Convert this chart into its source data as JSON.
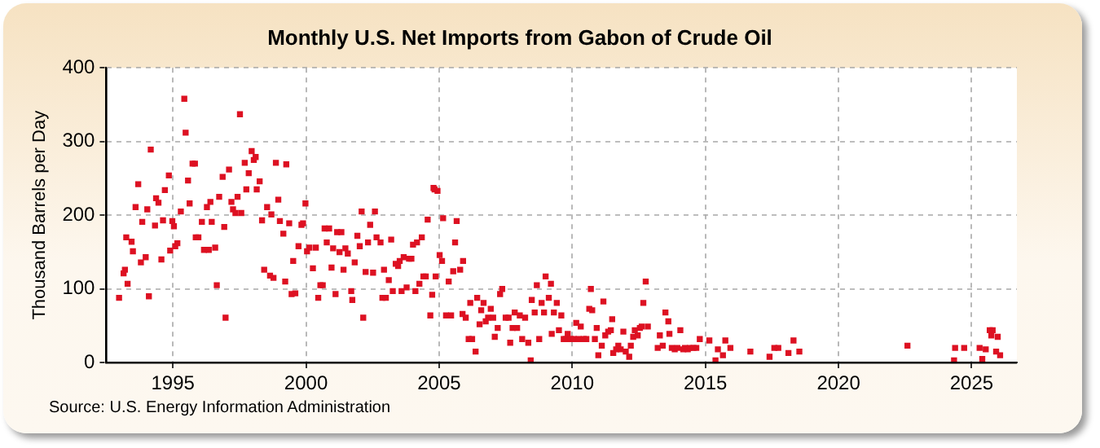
{
  "chart_data": {
    "type": "scatter",
    "title": "Monthly U.S. Net Imports from Gabon of Crude Oil",
    "ylabel": "Thousand Barrels per Day",
    "annotations": [
      "Source: U.S. Energy Information Administration"
    ],
    "color": "#dd1122",
    "marker": "square",
    "grid": true,
    "xlim": [
      1992.5,
      2026.7
    ],
    "xticks": [
      1995,
      2000,
      2005,
      2010,
      2015,
      2020,
      2025
    ],
    "ylim": [
      0,
      400
    ],
    "yticks": [
      0,
      100,
      200,
      300,
      400
    ],
    "x": [
      1992.98,
      1993.15,
      1993.2,
      1993.3,
      1993.25,
      1993.45,
      1993.5,
      1993.6,
      1993.7,
      1993.85,
      1993.8,
      1993.98,
      1994.04,
      1994.1,
      1994.17,
      1994.33,
      1994.37,
      1994.46,
      1994.57,
      1994.63,
      1994.7,
      1994.85,
      1994.9,
      1994.98,
      1995.04,
      1995.09,
      1995.17,
      1995.3,
      1995.43,
      1995.48,
      1995.57,
      1995.63,
      1995.74,
      1995.83,
      1995.86,
      1995.96,
      1996.09,
      1996.17,
      1996.28,
      1996.35,
      1996.41,
      1996.46,
      1996.59,
      1996.65,
      1996.74,
      1996.87,
      1996.93,
      1996.98,
      1997.11,
      1997.2,
      1997.26,
      1997.35,
      1997.43,
      1997.52,
      1997.57,
      1997.7,
      1997.76,
      1997.85,
      1997.96,
      1998.04,
      1998.11,
      1998.15,
      1998.26,
      1998.35,
      1998.43,
      1998.54,
      1998.65,
      1998.7,
      1998.78,
      1998.87,
      1998.96,
      1999.02,
      1999.15,
      1999.22,
      1999.26,
      1999.37,
      1999.46,
      1999.52,
      1999.6,
      1999.72,
      1999.83,
      1999.89,
      1999.98,
      2000.04,
      2000.13,
      2000.26,
      2000.37,
      2000.46,
      2000.54,
      2000.63,
      2000.7,
      2000.78,
      2000.87,
      2000.96,
      2001.02,
      2001.11,
      2001.17,
      2001.26,
      2001.33,
      2001.41,
      2001.48,
      2001.57,
      2001.7,
      2001.74,
      2001.83,
      2001.93,
      2002.02,
      2002.09,
      2002.15,
      2002.24,
      2002.33,
      2002.41,
      2002.52,
      2002.59,
      2002.65,
      2002.8,
      2002.87,
      2002.93,
      2003.0,
      2003.11,
      2003.2,
      2003.26,
      2003.37,
      2003.46,
      2003.52,
      2003.59,
      2003.67,
      2003.78,
      2003.87,
      2003.96,
      2004.02,
      2004.11,
      2004.17,
      2004.26,
      2004.35,
      2004.41,
      2004.5,
      2004.57,
      2004.67,
      2004.74,
      2004.79,
      2004.83,
      2004.87,
      2004.94,
      2005.02,
      2005.11,
      2005.15,
      2005.26,
      2005.36,
      2005.45,
      2005.53,
      2005.6,
      2005.66,
      2005.79,
      2005.9,
      2005.88,
      2006.0,
      2006.11,
      2006.24,
      2006.17,
      2006.37,
      2006.43,
      2006.52,
      2006.58,
      2006.67,
      2006.75,
      2006.84,
      2006.94,
      2007.03,
      2007.09,
      2007.2,
      2007.29,
      2007.37,
      2007.5,
      2007.61,
      2007.67,
      2007.76,
      2007.84,
      2007.93,
      2008.03,
      2008.12,
      2008.23,
      2008.35,
      2008.44,
      2008.48,
      2008.59,
      2008.67,
      2008.76,
      2008.85,
      2008.94,
      2009.0,
      2009.12,
      2009.2,
      2009.23,
      2009.31,
      2009.42,
      2009.5,
      2009.59,
      2009.68,
      2009.76,
      2009.83,
      2009.94,
      2010.06,
      2010.15,
      2010.24,
      2010.32,
      2010.43,
      2010.53,
      2010.64,
      2010.7,
      2010.75,
      2010.85,
      2010.92,
      2010.98,
      2011.11,
      2011.17,
      2011.24,
      2011.35,
      2011.45,
      2011.5,
      2011.54,
      2011.65,
      2011.73,
      2011.82,
      2011.92,
      2012.01,
      2012.14,
      2012.2,
      2012.29,
      2012.35,
      2012.46,
      2012.54,
      2012.61,
      2012.67,
      2012.76,
      2012.84,
      2013.21,
      2013.29,
      2013.4,
      2013.5,
      2013.61,
      2013.65,
      2013.74,
      2013.85,
      2013.95,
      2014.06,
      2014.17,
      2014.23,
      2014.34,
      2014.42,
      2014.55,
      2014.66,
      2014.79,
      2015.15,
      2015.38,
      2015.47,
      2015.66,
      2015.75,
      2015.94,
      2016.69,
      2017.41,
      2017.59,
      2017.74,
      2018.12,
      2018.31,
      2018.53,
      2022.59,
      2024.34,
      2024.38,
      2024.72,
      2025.3,
      2025.4,
      2025.53,
      2025.68,
      2025.79,
      2025.74,
      2025.98,
      2025.92,
      2026.07
    ],
    "values": [
      88,
      121,
      126,
      107,
      170,
      164,
      151,
      211,
      242,
      191,
      136,
      143,
      208,
      90,
      289,
      186,
      223,
      217,
      140,
      193,
      234,
      254,
      152,
      192,
      185,
      158,
      162,
      205,
      358,
      312,
      247,
      216,
      270,
      270,
      170,
      170,
      191,
      153,
      211,
      153,
      218,
      191,
      156,
      105,
      225,
      252,
      184,
      61,
      262,
      218,
      208,
      203,
      225,
      337,
      203,
      271,
      235,
      257,
      287,
      275,
      279,
      235,
      246,
      193,
      126,
      211,
      118,
      201,
      115,
      271,
      221,
      192,
      175,
      110,
      269,
      189,
      93,
      138,
      94,
      158,
      187,
      189,
      216,
      151,
      156,
      128,
      156,
      88,
      105,
      105,
      182,
      163,
      182,
      129,
      155,
      93,
      177,
      150,
      177,
      126,
      155,
      148,
      97,
      85,
      136,
      172,
      158,
      205,
      61,
      123,
      163,
      187,
      122,
      205,
      170,
      163,
      88,
      126,
      88,
      112,
      167,
      97,
      134,
      131,
      138,
      97,
      143,
      102,
      141,
      141,
      160,
      97,
      163,
      107,
      170,
      117,
      117,
      194,
      64,
      92,
      237,
      235,
      117,
      233,
      146,
      138,
      196,
      64,
      110,
      64,
      124,
      163,
      192,
      126,
      138,
      66,
      61,
      32,
      32,
      81,
      15,
      88,
      52,
      71,
      81,
      56,
      61,
      73,
      61,
      35,
      47,
      93,
      100,
      61,
      61,
      27,
      47,
      68,
      47,
      64,
      32,
      61,
      27,
      3,
      85,
      68,
      105,
      32,
      81,
      68,
      117,
      88,
      107,
      39,
      68,
      81,
      44,
      64,
      32,
      32,
      39,
      32,
      32,
      54,
      32,
      49,
      32,
      32,
      73,
      100,
      71,
      32,
      47,
      10,
      23,
      83,
      37,
      42,
      44,
      59,
      13,
      18,
      23,
      18,
      42,
      15,
      8,
      23,
      35,
      44,
      37,
      47,
      49,
      81,
      110,
      49,
      20,
      37,
      23,
      68,
      56,
      39,
      20,
      18,
      20,
      44,
      18,
      20,
      18,
      20,
      20,
      20,
      32,
      30,
      3,
      18,
      10,
      30,
      20,
      15,
      8,
      20,
      20,
      13,
      30,
      15,
      23,
      3,
      20,
      20,
      20,
      5,
      18,
      44,
      44,
      37,
      35,
      15,
      10
    ]
  }
}
